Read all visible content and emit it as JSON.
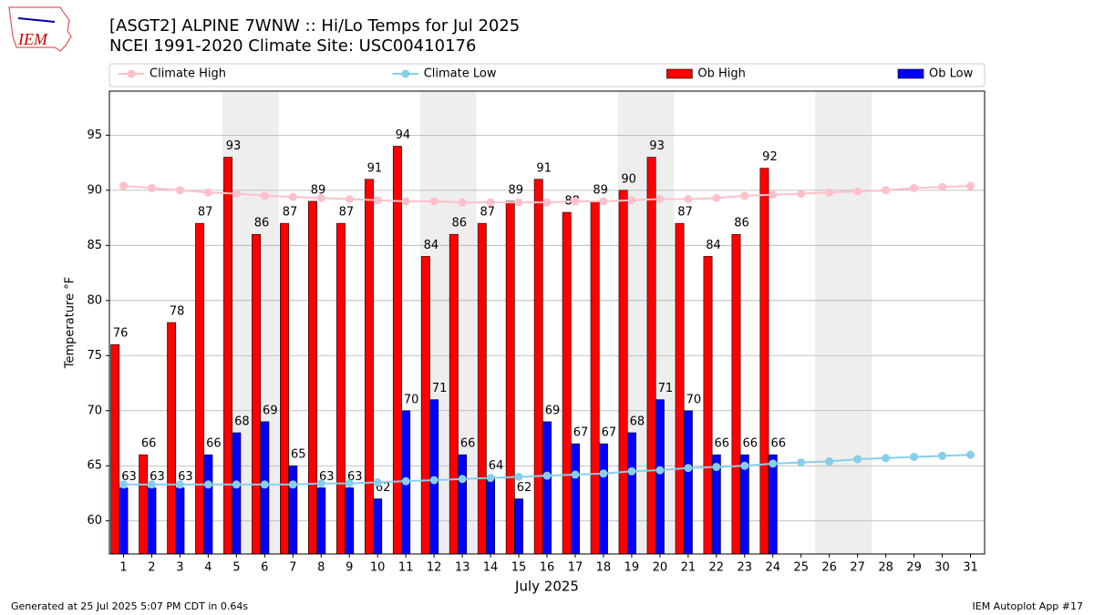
{
  "chart_data": {
    "type": "bar",
    "title": "[ASGT2] ALPINE 7WNW :: Hi/Lo Temps for Jul 2025",
    "subtitle": "NCEI 1991-2020 Climate Site: USC00410176",
    "xlabel": "July 2025",
    "ylabel": "Temperature °F",
    "footer_left": "Generated at 25 Jul 2025 5:07 PM CDT in 0.64s",
    "footer_right": "IEM Autoplot App #17",
    "logo_text": "IEM",
    "x": [
      1,
      2,
      3,
      4,
      5,
      6,
      7,
      8,
      9,
      10,
      11,
      12,
      13,
      14,
      15,
      16,
      17,
      18,
      19,
      20,
      21,
      22,
      23,
      24,
      25,
      26,
      27,
      28,
      29,
      30,
      31
    ],
    "xlim": [
      0.5,
      31.5
    ],
    "xticks": [
      1,
      2,
      3,
      4,
      5,
      6,
      7,
      8,
      9,
      10,
      11,
      12,
      13,
      14,
      15,
      16,
      17,
      18,
      19,
      20,
      21,
      22,
      23,
      24,
      25,
      26,
      27,
      28,
      29,
      30,
      31
    ],
    "ylim": [
      57,
      99
    ],
    "yticks": [
      60,
      65,
      70,
      75,
      80,
      85,
      90,
      95
    ],
    "grid": true,
    "legend": "top",
    "shaded_x": [
      [
        4.5,
        6.5
      ],
      [
        11.5,
        13.5
      ],
      [
        18.5,
        20.5
      ],
      [
        25.5,
        27.5
      ]
    ],
    "shade_color": "#eeeeee",
    "series": [
      {
        "name": "Climate High",
        "kind": "line",
        "color": "#ffc0cb",
        "values": [
          90.4,
          90.2,
          90.0,
          89.8,
          89.7,
          89.5,
          89.4,
          89.3,
          89.2,
          89.1,
          89.0,
          89.0,
          88.9,
          88.9,
          88.9,
          88.9,
          89.0,
          89.0,
          89.1,
          89.2,
          89.2,
          89.3,
          89.5,
          89.6,
          89.7,
          89.8,
          89.9,
          90.0,
          90.2,
          90.3,
          90.4
        ]
      },
      {
        "name": "Climate Low",
        "kind": "line",
        "color": "#87ceeb",
        "values": [
          63.3,
          63.3,
          63.3,
          63.3,
          63.3,
          63.3,
          63.3,
          63.4,
          63.4,
          63.5,
          63.6,
          63.7,
          63.8,
          63.9,
          64.0,
          64.1,
          64.2,
          64.3,
          64.5,
          64.6,
          64.8,
          64.9,
          65.0,
          65.2,
          65.3,
          65.4,
          65.6,
          65.7,
          65.8,
          65.9,
          66.0
        ]
      },
      {
        "name": "Ob High",
        "kind": "bar",
        "color": "#ff0000",
        "offset": -0.3,
        "values": [
          76,
          66,
          78,
          87,
          93,
          86,
          87,
          89,
          87,
          91,
          94,
          84,
          86,
          87,
          89,
          91,
          88,
          89,
          90,
          93,
          87,
          84,
          86,
          92,
          null,
          null,
          null,
          null,
          null,
          null,
          null
        ]
      },
      {
        "name": "Ob Low",
        "kind": "bar",
        "color": "#0000ff",
        "offset": 0,
        "values": [
          63,
          63,
          63,
          66,
          68,
          69,
          65,
          63,
          63,
          62,
          70,
          71,
          66,
          64,
          62,
          69,
          67,
          67,
          68,
          71,
          70,
          66,
          66,
          66,
          null,
          null,
          null,
          null,
          null,
          null,
          null
        ]
      }
    ]
  }
}
